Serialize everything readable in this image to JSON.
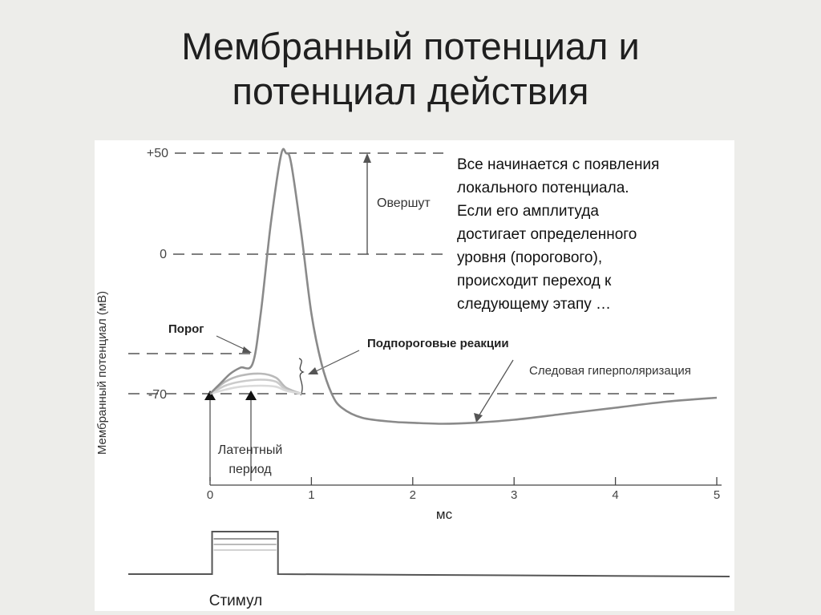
{
  "slide": {
    "title_line1": "Мембранный потенциал и",
    "title_line2": "потенциал действия"
  },
  "note": {
    "lines": [
      "Все начинается с появления",
      "локального потенциала.",
      "Если его амплитуда",
      "достигает определенного",
      "уровня (порогового),",
      "происходит переход к",
      "следующему этапу …"
    ]
  },
  "chart_data": {
    "type": "line",
    "title": "",
    "xlabel": "мс",
    "ylabel": "Мембранный потенциал (мВ)",
    "x_ticks": [
      "0",
      "1",
      "2",
      "3",
      "4",
      "5"
    ],
    "y_ticks": [
      "+50",
      "0",
      "-70"
    ],
    "xlim": [
      0,
      5
    ],
    "ylim": [
      -90,
      50
    ],
    "grid": false,
    "threshold_mv": -55,
    "series": [
      {
        "name": "",
        "x": [
          0,
          0.1,
          0.2,
          0.3,
          0.42,
          0.5,
          0.6,
          0.7,
          0.75,
          0.8,
          0.9,
          1.0,
          1.1,
          1.2,
          1.3,
          1.5,
          1.8,
          2.0,
          2.3,
          2.6,
          3.0,
          3.5,
          4.0,
          4.5,
          5.0
        ],
        "values": [
          -70,
          -65,
          -60,
          -57,
          -55,
          -30,
          15,
          49,
          50,
          45,
          10,
          -30,
          -55,
          -70,
          -77,
          -82,
          -84,
          -84.5,
          -85,
          -84.5,
          -83,
          -80,
          -77,
          -74,
          -72
        ]
      }
    ],
    "subthreshold_responses": [
      {
        "x": [
          0,
          0.15,
          0.3,
          0.5,
          0.65,
          0.75,
          0.9
        ],
        "values": [
          -70,
          -64,
          -61,
          -60,
          -62,
          -67,
          -70
        ]
      },
      {
        "x": [
          0,
          0.15,
          0.3,
          0.5,
          0.65,
          0.75,
          0.9
        ],
        "values": [
          -70,
          -66,
          -64,
          -63,
          -64,
          -68,
          -70
        ]
      },
      {
        "x": [
          0,
          0.15,
          0.3,
          0.5,
          0.65,
          0.75,
          0.9
        ],
        "values": [
          -70,
          -68,
          -66.5,
          -66,
          -66.5,
          -68.5,
          -70
        ]
      }
    ],
    "annotations": {
      "overshoot": "Овершут",
      "threshold": "Порог",
      "subthreshold": "Подпороговые реакции",
      "hyperpolarization": "Следовая гиперполяризация",
      "latent_line1": "Латентный",
      "latent_line2": "период",
      "stimulus": "Стимул"
    },
    "stimulus_trace": {
      "on_ms": 0.02,
      "off_ms": 0.67
    }
  }
}
